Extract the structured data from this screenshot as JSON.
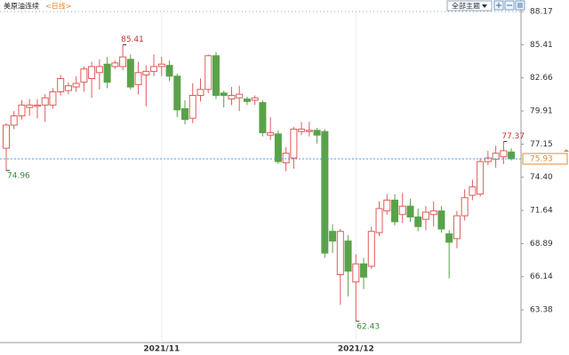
{
  "chart_data": {
    "type": "candlestick",
    "title": "美原油连续",
    "subtitle": "<日线>",
    "theme_button": "全部主题",
    "categories": [
      null,
      null,
      null,
      null,
      null,
      null,
      null,
      null,
      null,
      null,
      null,
      null,
      null,
      null,
      null,
      null,
      null,
      null,
      null,
      null,
      "2021/11",
      null,
      null,
      null,
      null,
      null,
      null,
      null,
      null,
      null,
      null,
      null,
      null,
      null,
      null,
      null,
      null,
      null,
      null,
      null,
      null,
      null,
      null,
      null,
      null,
      "2021/12",
      null,
      null,
      null,
      null,
      null,
      null,
      null,
      null,
      null,
      null,
      null,
      null,
      null,
      null,
      null,
      null,
      null,
      null,
      null,
      null
    ],
    "open": [
      76.81,
      78.73,
      79.5,
      80.2,
      80.3,
      80.4,
      80.4,
      81.5,
      81.6,
      81.9,
      82.3,
      82.6,
      83.1,
      83.8,
      83.6,
      83.6,
      84.2,
      82.1,
      82.9,
      83.2,
      83.6,
      83.7,
      82.8,
      80.1,
      79.3,
      81.2,
      81.7,
      84.5,
      81.4,
      80.9,
      81.0,
      80.9,
      80.8,
      80.6,
      77.9,
      78.0,
      75.6,
      76.0,
      78.2,
      78.2,
      78.3,
      78.2,
      69.9,
      66.3,
      69.1,
      65.7,
      67.2,
      67.0,
      69.8,
      71.6,
      72.5,
      71.3,
      72.0,
      71.1,
      70.9,
      71.3,
      71.6,
      69.7,
      69.3,
      71.2,
      72.9,
      73.0,
      75.7,
      75.9,
      76.1,
      76.5
    ],
    "close": [
      78.73,
      79.5,
      80.4,
      80.4,
      80.4,
      81.0,
      81.5,
      82.6,
      82.0,
      82.2,
      83.4,
      83.6,
      83.6,
      82.3,
      83.9,
      84.4,
      81.9,
      83.1,
      83.2,
      83.6,
      83.8,
      82.8,
      80.0,
      79.2,
      81.2,
      81.7,
      84.5,
      81.2,
      81.2,
      81.2,
      81.3,
      80.7,
      81.0,
      78.1,
      78.1,
      75.7,
      76.4,
      78.4,
      78.4,
      78.3,
      77.9,
      68.1,
      69.1,
      69.9,
      66.6,
      67.2,
      66.1,
      69.9,
      71.8,
      72.5,
      70.7,
      72.0,
      71.1,
      70.3,
      71.5,
      71.6,
      70.1,
      69.0,
      71.2,
      72.7,
      73.6,
      75.7,
      76.0,
      76.4,
      76.6,
      75.93
    ],
    "high": [
      78.9,
      79.9,
      80.8,
      80.9,
      80.9,
      81.3,
      81.8,
      82.9,
      82.3,
      82.8,
      83.6,
      84.0,
      84.2,
      84.4,
      84.1,
      85.41,
      84.6,
      84.0,
      83.7,
      84.6,
      84.4,
      84.1,
      83.0,
      80.8,
      82.2,
      82.6,
      84.6,
      84.8,
      81.6,
      81.9,
      82.0,
      81.1,
      81.2,
      80.8,
      79.4,
      78.3,
      76.9,
      78.6,
      79.0,
      79.0,
      78.5,
      78.4,
      70.5,
      70.1,
      69.6,
      68.0,
      67.7,
      70.3,
      72.4,
      73.0,
      73.0,
      73.1,
      72.6,
      71.8,
      72.0,
      72.4,
      72.0,
      70.0,
      71.6,
      73.4,
      74.2,
      76.0,
      76.6,
      77.0,
      77.37,
      76.8
    ],
    "low": [
      74.96,
      78.4,
      79.2,
      79.5,
      79.3,
      79.0,
      80.1,
      81.2,
      81.3,
      81.5,
      81.5,
      81.0,
      81.7,
      81.8,
      83.4,
      83.3,
      81.7,
      81.3,
      80.3,
      82.8,
      82.8,
      82.4,
      79.4,
      78.8,
      78.9,
      80.7,
      81.4,
      80.9,
      80.2,
      80.4,
      79.9,
      80.4,
      80.4,
      77.8,
      77.5,
      75.5,
      74.9,
      75.1,
      77.9,
      77.8,
      77.2,
      67.7,
      68.1,
      63.8,
      64.5,
      62.43,
      65.1,
      66.8,
      69.5,
      71.3,
      70.4,
      70.6,
      70.7,
      69.9,
      70.0,
      70.3,
      69.8,
      66.0,
      68.5,
      70.8,
      72.5,
      72.8,
      75.4,
      75.2,
      75.5,
      75.8
    ],
    "up_color": "#e05a5a",
    "down_color": "#5aa24a",
    "ylim": [
      60.66,
      88.54
    ],
    "yticks": [
      88.17,
      85.41,
      82.66,
      79.91,
      77.15,
      {
        "value": 74.4,
        "label": "74.40"
      },
      71.64,
      68.89,
      66.14,
      63.38
    ]
  }
}
